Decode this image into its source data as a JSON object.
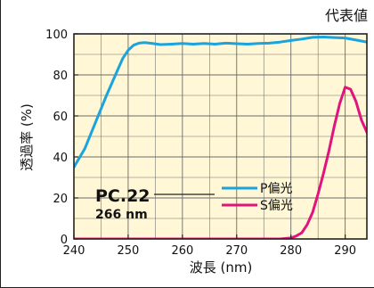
{
  "chart_data": {
    "type": "line",
    "title": "代表値",
    "xlabel": "波長 (nm)",
    "ylabel": "透過率 (%)",
    "xlim": [
      240,
      294
    ],
    "ylim": [
      0,
      100
    ],
    "x_ticks": [
      240,
      250,
      260,
      270,
      280,
      290
    ],
    "y_ticks": [
      0,
      20,
      40,
      60,
      80,
      100
    ],
    "grid": true,
    "legend_position": "lower-right",
    "background_color": "#fff7d6",
    "annotation": {
      "model": "PC.22",
      "wavelength": "266 nm"
    },
    "series": [
      {
        "name": "P偏光",
        "color": "#1aa3dc",
        "x": [
          240,
          242,
          244,
          246,
          248,
          249,
          250,
          251,
          252,
          253,
          254,
          256,
          258,
          260,
          262,
          264,
          266,
          268,
          270,
          272,
          274,
          276,
          278,
          280,
          282,
          284,
          286,
          288,
          290,
          292,
          294
        ],
        "y": [
          35,
          44,
          57,
          70,
          82,
          88,
          92,
          94.5,
          95.5,
          95.8,
          95.5,
          94.8,
          95,
          95.3,
          95,
          95.3,
          95,
          95.5,
          95.2,
          95,
          95.3,
          95.5,
          96,
          96.8,
          97.5,
          98.3,
          98.5,
          98.2,
          98,
          97,
          96
        ]
      },
      {
        "name": "S偏光",
        "color": "#e0147c",
        "x": [
          240,
          250,
          260,
          270,
          278,
          280,
          281,
          282,
          283,
          284,
          285,
          286,
          287,
          288,
          289,
          290,
          291,
          292,
          293,
          294
        ],
        "y": [
          0,
          0,
          0,
          0,
          0,
          0.5,
          1.5,
          3,
          7,
          13,
          22,
          32,
          43,
          55,
          66,
          74,
          73,
          67,
          58,
          52
        ]
      }
    ]
  }
}
